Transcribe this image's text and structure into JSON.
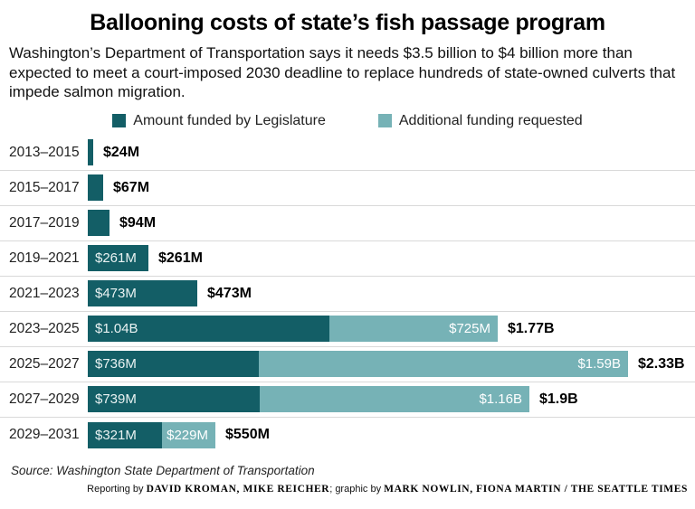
{
  "header": {
    "title": "Ballooning costs of state’s fish passage program",
    "subtitle": "Washington’s Department of Transportation says it needs $3.5 billion to $4 billion more than expected to meet a court-imposed 2030 deadline to replace hundreds of state-owned culverts that impede salmon migration."
  },
  "colors": {
    "funded": "#135e66",
    "requested": "#76b2b6",
    "divider": "#d9d9d9",
    "inside_label_funded": "#e9f2f2",
    "inside_label_requested": "#ffffff",
    "total_label": "#000000"
  },
  "chart_data": {
    "type": "bar",
    "orientation": "horizontal",
    "stacked": true,
    "grid": false,
    "legend_position": "top",
    "title": "Ballooning costs of state’s fish passage program",
    "xlabel": "",
    "ylabel": "Biennium",
    "xmax_millions": 2330,
    "categories": [
      "2013–2015",
      "2015–2017",
      "2017–2019",
      "2019–2021",
      "2021–2023",
      "2023–2025",
      "2025–2027",
      "2027–2029",
      "2029–2031"
    ],
    "series": [
      {
        "name": "Amount funded by Legislature",
        "values_millions": [
          24,
          67,
          94,
          261,
          473,
          1040,
          736,
          739,
          321
        ]
      },
      {
        "name": "Additional funding requested",
        "values_millions": [
          0,
          0,
          0,
          0,
          0,
          725,
          1590,
          1160,
          229
        ]
      }
    ],
    "segment_labels": {
      "funded": [
        "",
        "",
        "",
        "$261M",
        "$473M",
        "$1.04B",
        "$736M",
        "$739M",
        "$321M"
      ],
      "requested": [
        "",
        "",
        "",
        "",
        "",
        "$725M",
        "$1.59B",
        "$1.16B",
        "$229M"
      ]
    },
    "total_labels": [
      "$24M",
      "$67M",
      "$94M",
      "$261M",
      "$473M",
      "$1.77B",
      "$2.33B",
      "$1.9B",
      "$550M"
    ]
  },
  "footer": {
    "source": "Source: Washington State Department of Transportation",
    "credit_prefix": "Reporting by ",
    "credit_reporters": "DAVID KROMAN, MIKE REICHER",
    "credit_mid": "; graphic by ",
    "credit_graphics": "MARK NOWLIN, FIONA MARTIN / THE SEATTLE TIMES"
  }
}
